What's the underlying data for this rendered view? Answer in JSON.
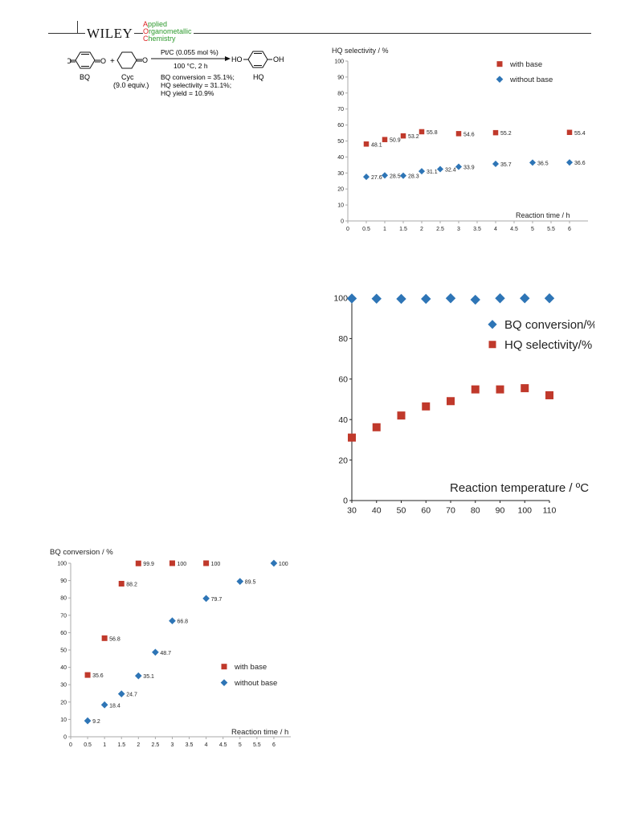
{
  "header": {
    "publisher": "WILEY",
    "journal_lines": [
      {
        "first": "A",
        "rest": "pplied"
      },
      {
        "first": "O",
        "rest": "rganometallic"
      },
      {
        "first": "C",
        "rest": "hemistry"
      }
    ],
    "accent_color": "#d22222",
    "journal_color": "#2e9a2e"
  },
  "scheme": {
    "reactant1": "BQ",
    "plus": "+",
    "reactant2": "Cyc",
    "reactant2_equiv": "(9.0 equiv.)",
    "conditions_top": "Pt/C (0.055 mol %)",
    "conditions_bottom": "100 °C, 2 h",
    "product": "HQ",
    "product_left_group": "HO",
    "product_right_group": "OH",
    "results": [
      "BQ conversion = 35.1%;",
      "HQ selectivity = 31.1%;",
      "HQ yield = 10.9%"
    ]
  },
  "chart_data": [
    {
      "id": "hq-selectivity-vs-time",
      "type": "scatter",
      "ylabel": "HQ selectivity / %",
      "xlabel": "Reaction time / h",
      "xlim": [
        0,
        6.5
      ],
      "ylim": [
        0,
        100
      ],
      "x_ticks": [
        "0",
        "0.5",
        "1",
        "1.5",
        "2",
        "2.5",
        "3",
        "3.5",
        "4",
        "4.5",
        "5",
        "5.5",
        "6"
      ],
      "y_ticks": [
        "0",
        "10",
        "20",
        "30",
        "40",
        "50",
        "60",
        "70",
        "80",
        "90",
        "100"
      ],
      "legend_position": "top-right",
      "series": [
        {
          "name": "with base",
          "color": "#c0392b",
          "marker": "square",
          "x": [
            0.5,
            1,
            1.5,
            2,
            3,
            4,
            6
          ],
          "y": [
            48.1,
            50.9,
            53.2,
            55.8,
            54.6,
            55.2,
            55.4
          ],
          "labels": [
            "48.1",
            "50.9",
            "53.2",
            "55.8",
            "54.6",
            "55.2",
            "55.4"
          ]
        },
        {
          "name": "without base",
          "color": "#2e75b6",
          "marker": "diamond",
          "x": [
            0.5,
            1,
            1.5,
            2,
            2.5,
            3,
            4,
            5,
            6
          ],
          "y": [
            27.6,
            28.5,
            28.3,
            31.1,
            32.4,
            33.9,
            35.7,
            36.5,
            36.6
          ],
          "labels": [
            "27.6",
            "28.5",
            "28.3",
            "31.1",
            "32.4",
            "33.9",
            "35.7",
            "36.5",
            "36.6"
          ]
        }
      ]
    },
    {
      "id": "conversion-selectivity-vs-temperature",
      "type": "scatter",
      "xlabel": "Reaction temperature / ºC",
      "ylabel": "",
      "xlim": [
        30,
        110
      ],
      "ylim": [
        0,
        100
      ],
      "x_ticks": [
        "30",
        "40",
        "50",
        "60",
        "70",
        "80",
        "90",
        "100",
        "110"
      ],
      "y_ticks": [
        "0",
        "20",
        "40",
        "60",
        "80",
        "100"
      ],
      "legend_position": "right",
      "series": [
        {
          "name": "BQ conversion/%",
          "color": "#2e75b6",
          "marker": "diamond",
          "x": [
            30,
            40,
            50,
            60,
            70,
            80,
            90,
            100,
            110
          ],
          "y": [
            99.8,
            99.7,
            99.6,
            99.6,
            99.9,
            99.2,
            99.9,
            99.9,
            99.9
          ]
        },
        {
          "name": "HQ selectivity/%",
          "color": "#c0392b",
          "marker": "square",
          "x": [
            30,
            40,
            50,
            60,
            70,
            80,
            90,
            100,
            110
          ],
          "y": [
            31.1,
            36.2,
            42.0,
            46.5,
            49.1,
            54.9,
            54.9,
            55.5,
            52.0
          ]
        }
      ]
    },
    {
      "id": "bq-conversion-vs-time",
      "type": "scatter",
      "ylabel": "BQ conversion / %",
      "xlabel": "Reaction time / h",
      "xlim": [
        0,
        6.5
      ],
      "ylim": [
        0,
        100
      ],
      "x_ticks": [
        "0",
        "0.5",
        "1",
        "1.5",
        "2",
        "2.5",
        "3",
        "3.5",
        "4",
        "4.5",
        "5",
        "5.5",
        "6"
      ],
      "y_ticks": [
        "0",
        "10",
        "20",
        "30",
        "40",
        "50",
        "60",
        "70",
        "80",
        "90",
        "100"
      ],
      "legend_position": "bottom-right",
      "series": [
        {
          "name": "with base",
          "color": "#c0392b",
          "marker": "square",
          "x": [
            0.5,
            1,
            1.5,
            2,
            3,
            4
          ],
          "y": [
            35.6,
            56.8,
            88.2,
            99.9,
            100,
            100
          ],
          "labels": [
            "35.6",
            "56.8",
            "88.2",
            "99.9",
            "100",
            "100"
          ]
        },
        {
          "name": "without base",
          "color": "#2e75b6",
          "marker": "diamond",
          "x": [
            0.5,
            1,
            1.5,
            2,
            2.5,
            3,
            4,
            5,
            6
          ],
          "y": [
            9.2,
            18.4,
            24.7,
            35.1,
            48.7,
            66.8,
            79.7,
            89.5,
            100
          ],
          "labels": [
            "9.2",
            "18.4",
            "24.7",
            "35.1",
            "48.7",
            "66.8",
            "79.7",
            "89.5",
            "100"
          ]
        }
      ]
    }
  ]
}
